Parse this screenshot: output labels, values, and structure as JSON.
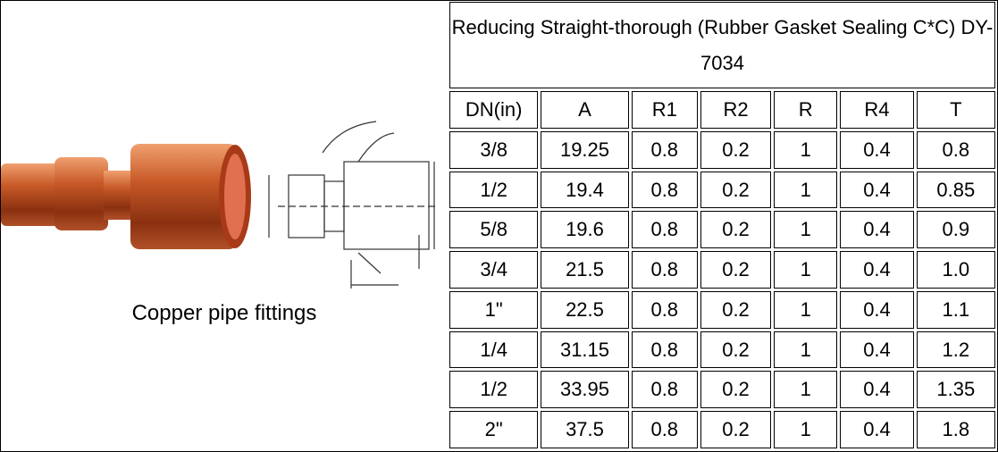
{
  "caption": "Copper pipe fittings",
  "table": {
    "title": "Reducing Straight-thorough (Rubber Gasket Sealing C*C) DY-7034",
    "headers": [
      "DN(in)",
      "A",
      "R1",
      "R2",
      "R",
      "R4",
      "T"
    ],
    "rows": [
      [
        "3/8",
        "19.25",
        "0.8",
        "0.2",
        "1",
        "0.4",
        "0.8"
      ],
      [
        "1/2",
        "19.4",
        "0.8",
        "0.2",
        "1",
        "0.4",
        "0.85"
      ],
      [
        "5/8",
        "19.6",
        "0.8",
        "0.2",
        "1",
        "0.4",
        "0.9"
      ],
      [
        "3/4",
        "21.5",
        "0.8",
        "0.2",
        "1",
        "0.4",
        "1.0"
      ],
      [
        "1\"",
        "22.5",
        "0.8",
        "0.2",
        "1",
        "0.4",
        "1.1"
      ],
      [
        "1/4",
        "31.15",
        "0.8",
        "0.2",
        "1",
        "0.4",
        "1.2"
      ],
      [
        "1/2",
        "33.95",
        "0.8",
        "0.2",
        "1",
        "0.4",
        "1.35"
      ],
      [
        "2\"",
        "37.5",
        "0.8",
        "0.2",
        "1",
        "0.4",
        "1.8"
      ]
    ]
  }
}
